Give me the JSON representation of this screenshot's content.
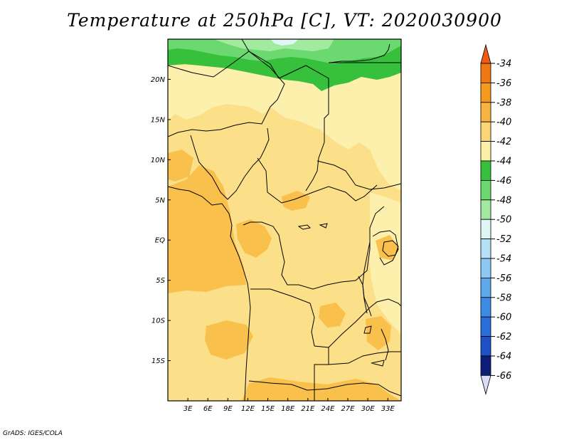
{
  "title": "Temperature at 250hPa [C], VT: 2020030900",
  "credit": "GrADS: IGES/COLA",
  "map": {
    "lon_range": [
      0,
      35
    ],
    "lat_range": [
      -20,
      25
    ],
    "lon_ticks": [
      {
        "value": 3,
        "label": "3E"
      },
      {
        "value": 6,
        "label": "6E"
      },
      {
        "value": 9,
        "label": "9E"
      },
      {
        "value": 12,
        "label": "12E"
      },
      {
        "value": 15,
        "label": "15E"
      },
      {
        "value": 18,
        "label": "18E"
      },
      {
        "value": 21,
        "label": "21E"
      },
      {
        "value": 24,
        "label": "24E"
      },
      {
        "value": 27,
        "label": "27E"
      },
      {
        "value": 30,
        "label": "30E"
      },
      {
        "value": 33,
        "label": "33E"
      }
    ],
    "lat_ticks": [
      {
        "value": 20,
        "label": "20N"
      },
      {
        "value": 15,
        "label": "15N"
      },
      {
        "value": 10,
        "label": "10N"
      },
      {
        "value": 5,
        "label": "5N"
      },
      {
        "value": 0,
        "label": "EQ"
      },
      {
        "value": -5,
        "label": "5S"
      },
      {
        "value": -10,
        "label": "10S"
      },
      {
        "value": -15,
        "label": "15S"
      }
    ]
  },
  "colorbar": {
    "labels": [
      "-34",
      "-36",
      "-38",
      "-40",
      "-42",
      "-44",
      "-46",
      "-48",
      "-50",
      "-52",
      "-54",
      "-56",
      "-58",
      "-60",
      "-62",
      "-64",
      "-66"
    ],
    "top_color": "#f05a14",
    "bottom_color": "#dcdcf8",
    "colors": [
      "#f07814",
      "#f59a1e",
      "#f8b440",
      "#fcd676",
      "#fdefa8",
      "#36c03c",
      "#6cd870",
      "#a2eaa0",
      "#dff7f4",
      "#b6e0f6",
      "#8cc8f2",
      "#5ea8ec",
      "#3c8ce6",
      "#2a6edc",
      "#1e50c8",
      "#0e1e78"
    ]
  }
}
